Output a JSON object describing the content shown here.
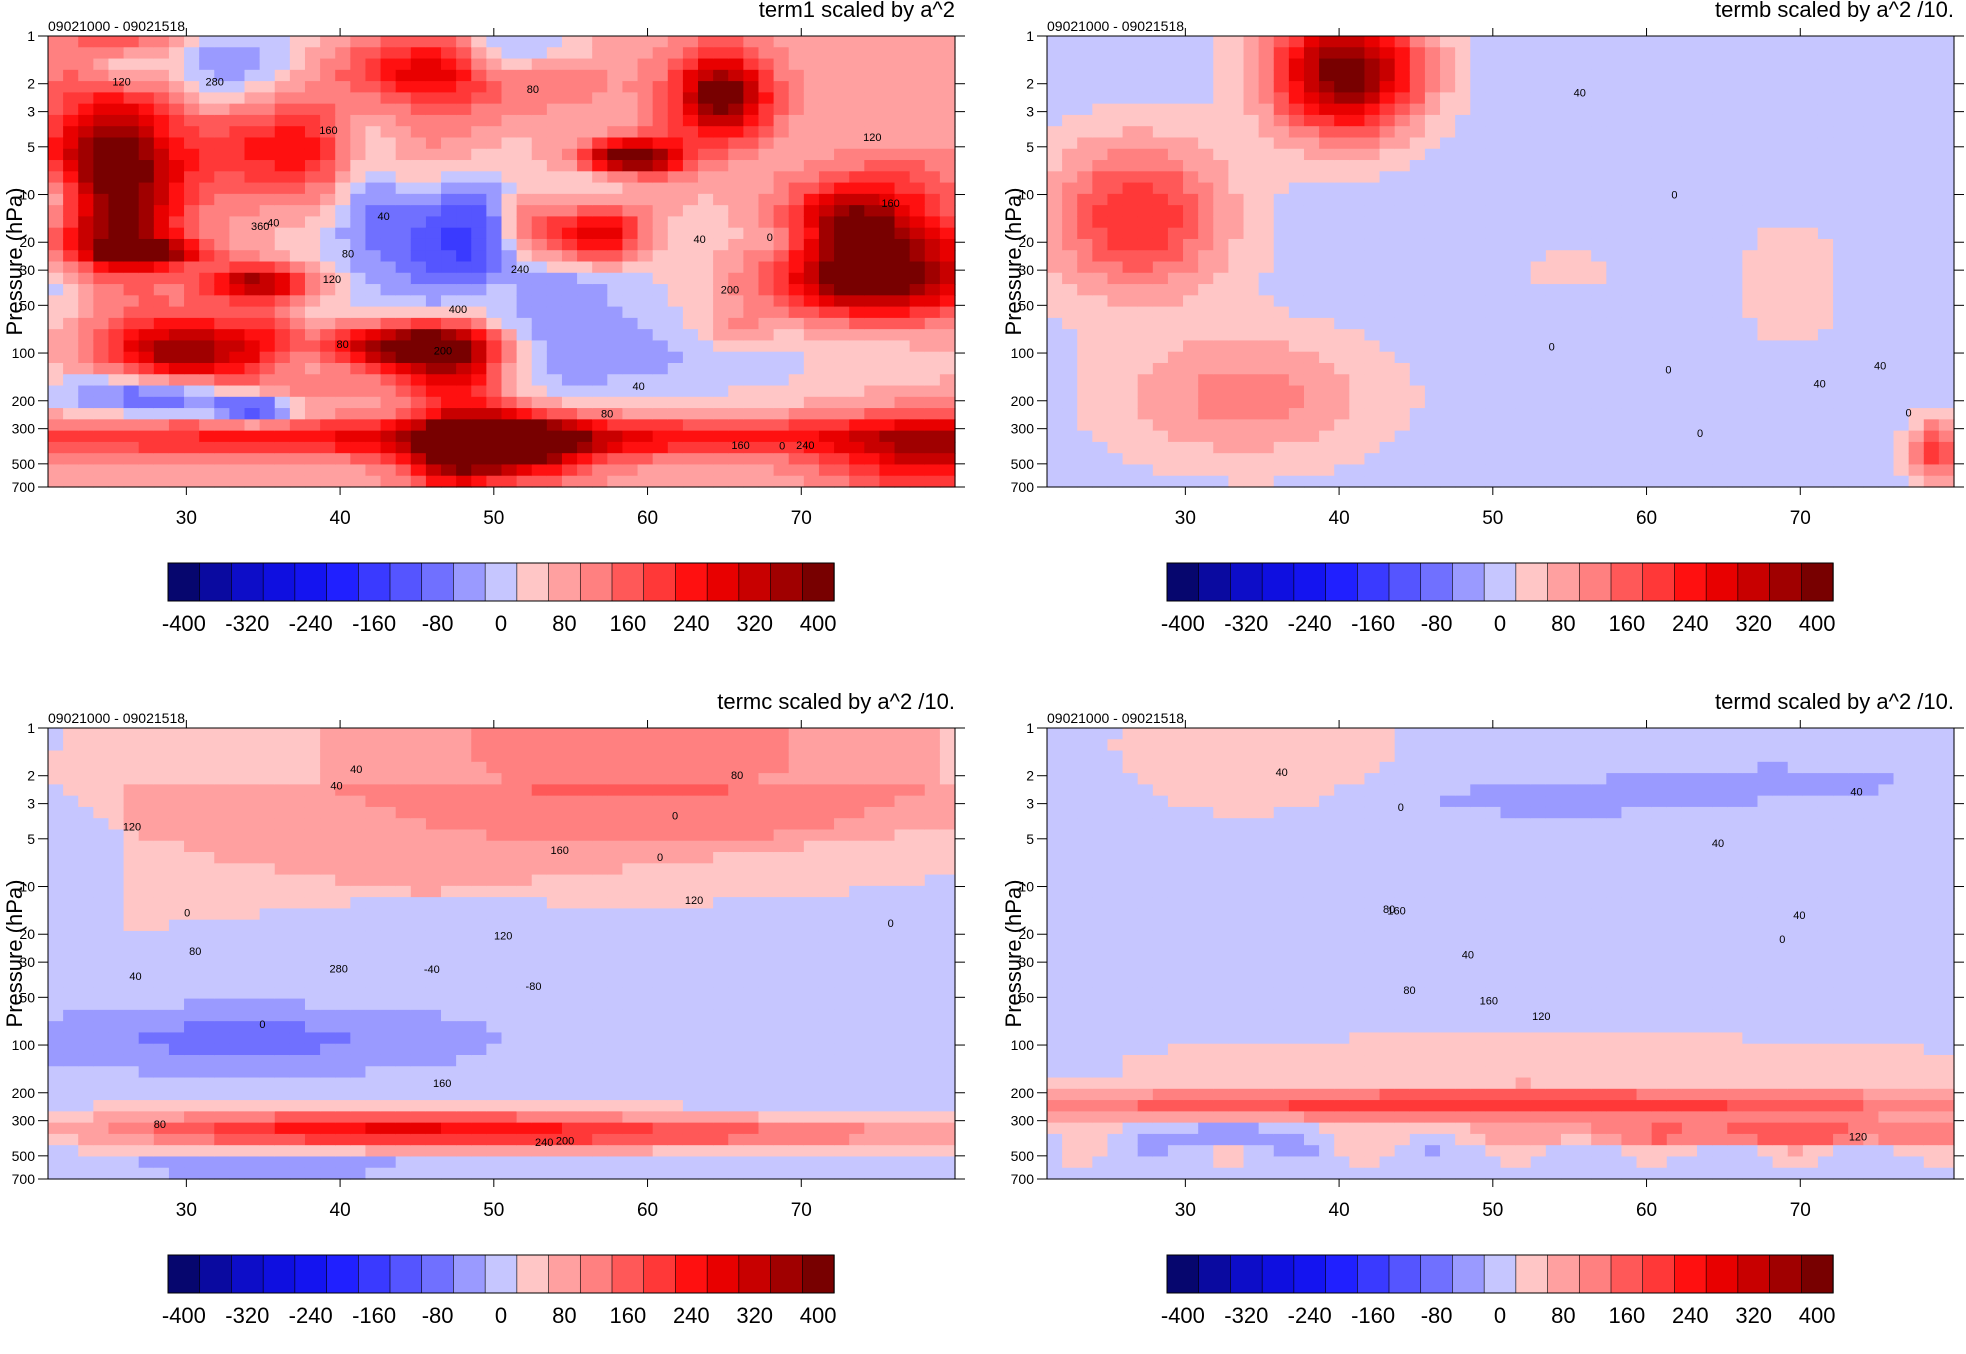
{
  "figure": {
    "colorbar": {
      "levels": [
        -400,
        -360,
        -320,
        -280,
        -240,
        -200,
        -160,
        -120,
        -80,
        -40,
        0,
        40,
        80,
        120,
        160,
        200,
        240,
        280,
        320,
        360,
        400
      ],
      "colors": [
        "#06066e",
        "#0a0aa0",
        "#0d0dc8",
        "#0f0fe0",
        "#1414f0",
        "#2020ff",
        "#3a3aff",
        "#5555ff",
        "#7070ff",
        "#9a9aff",
        "#c6c6ff",
        "#ffc6c6",
        "#ffa0a0",
        "#ff8080",
        "#ff5858",
        "#ff3838",
        "#ff1010",
        "#e80000",
        "#c80000",
        "#a00000",
        "#780000"
      ],
      "tick_labels": [
        "-400",
        "-320",
        "-240",
        "-160",
        "-80",
        "0",
        "80",
        "160",
        "240",
        "320",
        "400"
      ]
    },
    "panels": [
      {
        "id": "term1",
        "title": "term1 scaled by a^2",
        "time_range": "09021000 - 09021518",
        "ylabel": "Pressure (hPa)",
        "pattern": "noisy",
        "contour_labels": [
          "400",
          "360",
          "280",
          "200",
          "240",
          "160",
          "200",
          "120",
          "80",
          "40",
          "0",
          "80",
          "120",
          "160",
          "80",
          "40",
          "240",
          "160",
          "120",
          "40",
          "0",
          "-40",
          "80"
        ]
      },
      {
        "id": "termb",
        "title": "termb scaled by a^2 /10.",
        "time_range": "09021000 - 09021518",
        "ylabel": "Pressure (hPa)",
        "pattern": "blobs",
        "contour_labels": [
          "40",
          "40",
          "0",
          "40",
          "0",
          "0",
          "0",
          "0"
        ]
      },
      {
        "id": "termc",
        "title": "termc scaled by a^2 /10.",
        "time_range": "09021000 - 09021518",
        "ylabel": "Pressure (hPa)",
        "pattern": "smooth",
        "contour_labels": [
          "40",
          "0",
          "0",
          "-40",
          "-80",
          "80",
          "120",
          "0",
          "40",
          "160",
          "120",
          "80",
          "40",
          "280",
          "240",
          "200",
          "160",
          "80",
          "120",
          "0",
          "0"
        ]
      },
      {
        "id": "termd",
        "title": "termd scaled by a^2 /10.",
        "time_range": "09021000 - 09021518",
        "ylabel": "Pressure (hPa)",
        "pattern": "bands",
        "contour_labels": [
          "40",
          "40",
          "0",
          "40",
          "160",
          "120",
          "80",
          "80",
          "120",
          "160",
          "0",
          "40",
          "40"
        ]
      }
    ]
  },
  "chart_data": [
    {
      "type": "heatmap",
      "title": "term1 scaled by a^2",
      "subtitle": "09021000 - 09021518",
      "xlabel": "",
      "ylabel": "Pressure (hPa)",
      "x_ticks": [
        30,
        40,
        50,
        60,
        70
      ],
      "xlim": [
        21,
        80
      ],
      "y_ticks": [
        1,
        2,
        3,
        5,
        10,
        20,
        30,
        50,
        100,
        200,
        300,
        500,
        700
      ],
      "ylim": [
        700,
        1
      ],
      "y_scale": "log",
      "contour_levels": [
        -400,
        -360,
        -320,
        -280,
        -240,
        -200,
        -160,
        -120,
        -80,
        -40,
        0,
        40,
        80,
        120,
        160,
        200,
        240,
        280,
        320,
        360,
        400
      ]
    },
    {
      "type": "heatmap",
      "title": "termb scaled by a^2 /10.",
      "subtitle": "09021000 - 09021518",
      "xlabel": "",
      "ylabel": "Pressure (hPa)",
      "x_ticks": [
        30,
        40,
        50,
        60,
        70
      ],
      "xlim": [
        21,
        80
      ],
      "y_ticks": [
        1,
        2,
        3,
        5,
        10,
        20,
        30,
        50,
        100,
        200,
        300,
        500,
        700
      ],
      "ylim": [
        700,
        1
      ],
      "y_scale": "log",
      "contour_levels": [
        -400,
        -360,
        -320,
        -280,
        -240,
        -200,
        -160,
        -120,
        -80,
        -40,
        0,
        40,
        80,
        120,
        160,
        200,
        240,
        280,
        320,
        360,
        400
      ]
    },
    {
      "type": "heatmap",
      "title": "termc scaled by a^2 /10.",
      "subtitle": "09021000 - 09021518",
      "xlabel": "",
      "ylabel": "Pressure (hPa)",
      "x_ticks": [
        30,
        40,
        50,
        60,
        70
      ],
      "xlim": [
        21,
        80
      ],
      "y_ticks": [
        1,
        2,
        3,
        5,
        10,
        20,
        30,
        50,
        100,
        200,
        300,
        500,
        700
      ],
      "ylim": [
        700,
        1
      ],
      "y_scale": "log",
      "contour_levels": [
        -400,
        -360,
        -320,
        -280,
        -240,
        -200,
        -160,
        -120,
        -80,
        -40,
        0,
        40,
        80,
        120,
        160,
        200,
        240,
        280,
        320,
        360,
        400
      ]
    },
    {
      "type": "heatmap",
      "title": "termd scaled by a^2 /10.",
      "subtitle": "09021000 - 09021518",
      "xlabel": "",
      "ylabel": "Pressure (hPa)",
      "x_ticks": [
        30,
        40,
        50,
        60,
        70
      ],
      "xlim": [
        21,
        80
      ],
      "y_ticks": [
        1,
        2,
        3,
        5,
        10,
        20,
        30,
        50,
        100,
        200,
        300,
        500,
        700
      ],
      "ylim": [
        700,
        1
      ],
      "y_scale": "log",
      "contour_levels": [
        -400,
        -360,
        -320,
        -280,
        -240,
        -200,
        -160,
        -120,
        -80,
        -40,
        0,
        40,
        80,
        120,
        160,
        200,
        240,
        280,
        320,
        360,
        400
      ]
    }
  ]
}
